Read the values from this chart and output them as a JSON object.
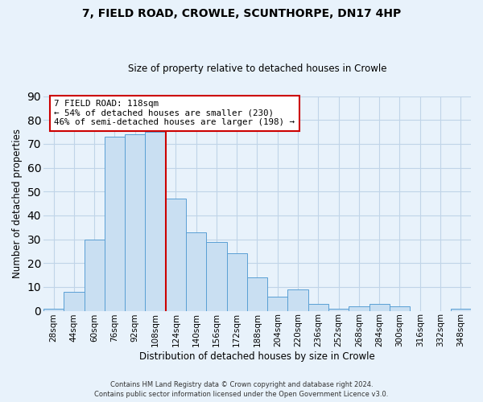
{
  "title": "7, FIELD ROAD, CROWLE, SCUNTHORPE, DN17 4HP",
  "subtitle": "Size of property relative to detached houses in Crowle",
  "xlabel": "Distribution of detached houses by size in Crowle",
  "ylabel": "Number of detached properties",
  "bin_labels": [
    "28sqm",
    "44sqm",
    "60sqm",
    "76sqm",
    "92sqm",
    "108sqm",
    "124sqm",
    "140sqm",
    "156sqm",
    "172sqm",
    "188sqm",
    "204sqm",
    "220sqm",
    "236sqm",
    "252sqm",
    "268sqm",
    "284sqm",
    "300sqm",
    "316sqm",
    "332sqm",
    "348sqm"
  ],
  "bar_heights": [
    1,
    8,
    30,
    73,
    74,
    75,
    47,
    33,
    29,
    24,
    14,
    6,
    9,
    3,
    1,
    2,
    3,
    2,
    0,
    0,
    1
  ],
  "bar_color": "#c9dff2",
  "bar_edge_color": "#5a9fd4",
  "bar_edge_width": 0.7,
  "grid_color": "#c0d4e8",
  "background_color": "#e8f2fb",
  "ylim": [
    0,
    90
  ],
  "yticks": [
    0,
    10,
    20,
    30,
    40,
    50,
    60,
    70,
    80,
    90
  ],
  "vline_x": 5.5,
  "vline_color": "#cc0000",
  "annotation_title": "7 FIELD ROAD: 118sqm",
  "annotation_line1": "← 54% of detached houses are smaller (230)",
  "annotation_line2": "46% of semi-detached houses are larger (198) →",
  "annotation_box_color": "#ffffff",
  "annotation_box_edge": "#cc0000",
  "footer1": "Contains HM Land Registry data © Crown copyright and database right 2024.",
  "footer2": "Contains public sector information licensed under the Open Government Licence v3.0."
}
